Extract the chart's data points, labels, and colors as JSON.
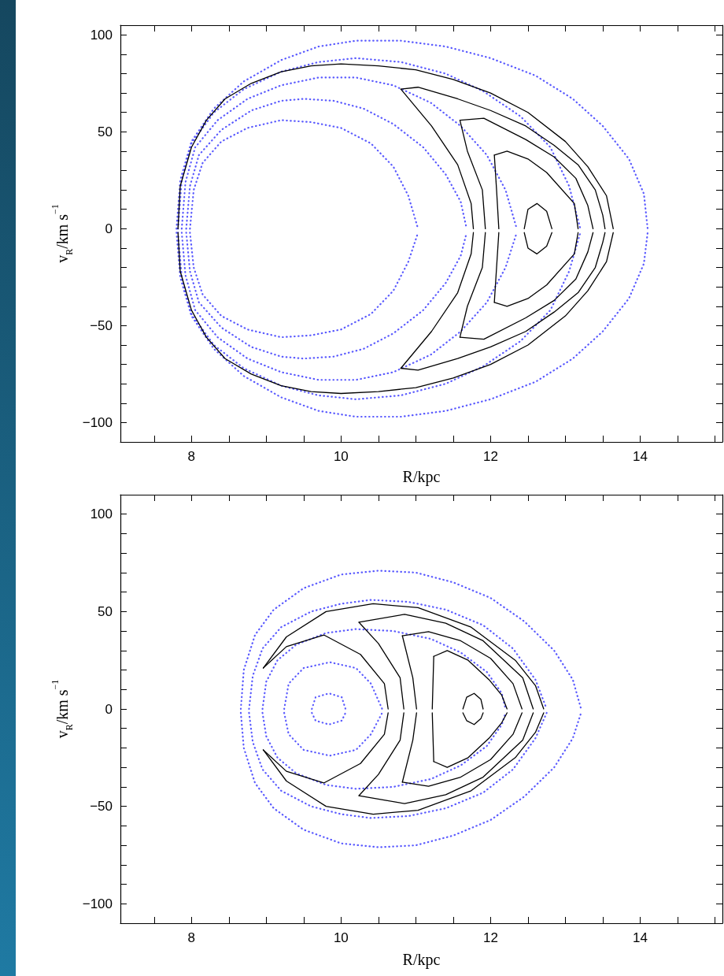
{
  "chart_data": [
    {
      "type": "line",
      "xlabel": "R/kpc",
      "ylabel": "v$_{R}$/km s$^{−1}$",
      "marker": "none",
      "xlim": [
        7.05,
        15.1
      ],
      "ylim": [
        -110,
        105
      ],
      "xticks": [
        {
          "value": 7.5,
          "label": null
        },
        8,
        {
          "value": 8.5,
          "label": null
        },
        {
          "value": 9,
          "label": null
        },
        {
          "value": 9.5,
          "label": null
        },
        10,
        {
          "value": 10.5,
          "label": null
        },
        {
          "value": 11,
          "label": null
        },
        {
          "value": 11.5,
          "label": null
        },
        12,
        {
          "value": 12.5,
          "label": null
        },
        {
          "value": 13,
          "label": null
        },
        {
          "value": 13.5,
          "label": null
        },
        14,
        {
          "value": 14.5,
          "label": null
        },
        {
          "value": 15,
          "label": null
        }
      ],
      "yticks": [
        -100,
        {
          "value": -90,
          "label": null
        },
        {
          "value": -80,
          "label": null
        },
        {
          "value": -70,
          "label": null
        },
        {
          "value": -60,
          "label": null
        },
        -50,
        {
          "value": -40,
          "label": null
        },
        {
          "value": -30,
          "label": null
        },
        {
          "value": -20,
          "label": null
        },
        {
          "value": -10,
          "label": null
        },
        0,
        {
          "value": 10,
          "label": null
        },
        {
          "value": 20,
          "label": null
        },
        {
          "value": 30,
          "label": null
        },
        {
          "value": 40,
          "label": null
        },
        50,
        {
          "value": 60,
          "label": null
        },
        {
          "value": 70,
          "label": null
        },
        {
          "value": 80,
          "label": null
        },
        {
          "value": 90,
          "label": null
        },
        100
      ],
      "series": [
        {
          "color": "#5a5aff",
          "line_style": "dotted",
          "x": [
            7.8,
            7.85,
            8.0,
            8.3,
            8.7,
            9.2,
            9.7,
            10.2,
            10.8,
            11.4,
            12.0,
            12.6,
            13.1,
            13.5,
            13.85,
            14.05,
            14.1
          ],
          "values": [
            0,
            25,
            45,
            62,
            76,
            87,
            94,
            97,
            97,
            94,
            88,
            79,
            67,
            53,
            36,
            18,
            0
          ]
        },
        {
          "color": "#5a5aff",
          "line_style": "dotted",
          "x": [
            7.8,
            7.85,
            8.0,
            8.3,
            8.7,
            9.2,
            9.7,
            10.2,
            10.8,
            11.4,
            12.0,
            12.6,
            13.1,
            13.5,
            13.85,
            14.05,
            14.1
          ],
          "values": [
            -2,
            -25,
            -45,
            -62,
            -76,
            -87,
            -94,
            -97,
            -97,
            -94,
            -88,
            -79,
            -67,
            -53,
            -36,
            -18,
            -2
          ]
        },
        {
          "color": "#5a5aff",
          "line_style": "dotted",
          "x": [
            7.82,
            7.87,
            8.0,
            8.3,
            8.7,
            9.2,
            9.7,
            10.2,
            10.8,
            11.4,
            11.9,
            12.4,
            12.8,
            13.05,
            13.2
          ],
          "values": [
            0,
            25,
            44,
            60,
            72,
            81,
            86,
            88,
            86,
            80,
            71,
            58,
            42,
            22,
            0
          ]
        },
        {
          "color": "#5a5aff",
          "line_style": "dotted",
          "x": [
            7.82,
            7.87,
            8.0,
            8.3,
            8.7,
            9.2,
            9.7,
            10.2,
            10.8,
            11.4,
            11.9,
            12.4,
            12.8,
            13.05,
            13.2
          ],
          "values": [
            -2,
            -25,
            -44,
            -60,
            -72,
            -81,
            -86,
            -88,
            -86,
            -80,
            -71,
            -58,
            -42,
            -22,
            -2
          ]
        },
        {
          "color": "#5a5aff",
          "line_style": "dotted",
          "x": [
            7.87,
            7.92,
            8.05,
            8.35,
            8.75,
            9.2,
            9.7,
            10.2,
            10.7,
            11.2,
            11.6,
            11.95,
            12.2,
            12.35
          ],
          "values": [
            0,
            24,
            42,
            56,
            67,
            74,
            78,
            78,
            74,
            65,
            53,
            38,
            20,
            0
          ]
        },
        {
          "color": "#5a5aff",
          "line_style": "dotted",
          "x": [
            7.87,
            7.92,
            8.05,
            8.35,
            8.75,
            9.2,
            9.7,
            10.2,
            10.7,
            11.2,
            11.6,
            11.95,
            12.2,
            12.35
          ],
          "values": [
            -2,
            -24,
            -42,
            -56,
            -67,
            -74,
            -78,
            -78,
            -74,
            -65,
            -53,
            -38,
            -20,
            -2
          ]
        },
        {
          "color": "#5a5aff",
          "line_style": "dotted",
          "x": [
            7.93,
            7.98,
            8.1,
            8.4,
            8.8,
            9.2,
            9.5,
            9.9,
            10.3,
            10.7,
            11.1,
            11.4,
            11.6,
            11.68
          ],
          "values": [
            0,
            22,
            38,
            51,
            61,
            66,
            67,
            66,
            62,
            54,
            42,
            28,
            14,
            0
          ]
        },
        {
          "color": "#5a5aff",
          "line_style": "dotted",
          "x": [
            7.93,
            7.98,
            8.1,
            8.4,
            8.8,
            9.2,
            9.5,
            9.9,
            10.3,
            10.7,
            11.1,
            11.4,
            11.6,
            11.68
          ],
          "values": [
            -2,
            -22,
            -38,
            -51,
            -61,
            -66,
            -67,
            -66,
            -62,
            -54,
            -42,
            -28,
            -14,
            -2
          ]
        },
        {
          "color": "#5a5aff",
          "line_style": "dotted",
          "x": [
            7.98,
            8.03,
            8.15,
            8.4,
            8.75,
            9.2,
            9.6,
            10.0,
            10.4,
            10.7,
            10.9,
            11.03
          ],
          "values": [
            0,
            20,
            34,
            45,
            52,
            56,
            55,
            52,
            44,
            32,
            17,
            0
          ]
        },
        {
          "color": "#5a5aff",
          "line_style": "dotted",
          "x": [
            7.98,
            8.03,
            8.15,
            8.4,
            8.75,
            9.2,
            9.6,
            10.0,
            10.4,
            10.7,
            10.9,
            11.03
          ],
          "values": [
            -2,
            -20,
            -34,
            -45,
            -52,
            -56,
            -55,
            -52,
            -44,
            -32,
            -17,
            -2
          ]
        },
        {
          "color": "#000000",
          "line_style": "solid",
          "x": [
            7.82,
            7.85,
            8.0,
            8.2,
            8.45,
            8.8,
            9.2,
            9.6,
            10.0,
            10.5,
            11.0,
            11.5,
            12.0,
            12.5,
            13.0,
            13.3,
            13.55,
            13.64
          ],
          "values": [
            0,
            22,
            42,
            56,
            67,
            75,
            81,
            84,
            85,
            84,
            82,
            77,
            70,
            60,
            45,
            32,
            17,
            0
          ]
        },
        {
          "color": "#000000",
          "line_style": "solid",
          "x": [
            7.82,
            7.85,
            8.0,
            8.2,
            8.45,
            8.8,
            9.2,
            9.6,
            10.0,
            10.5,
            11.0,
            11.5,
            12.0,
            12.5,
            13.0,
            13.3,
            13.55,
            13.64
          ],
          "values": [
            -2,
            -22,
            -42,
            -56,
            -67,
            -75,
            -81,
            -84,
            -85,
            -84,
            -82,
            -77,
            -70,
            -60,
            -45,
            -32,
            -17,
            -2
          ]
        },
        {
          "color": "#000000",
          "line_style": "solid",
          "x": [
            10.8,
            11.03,
            11.56,
            12.0,
            12.47,
            12.85,
            13.17,
            13.4,
            13.5,
            13.53
          ],
          "values": [
            72,
            73,
            67,
            61,
            53,
            43,
            33,
            20,
            7,
            0
          ]
        },
        {
          "color": "#000000",
          "line_style": "solid",
          "x": [
            10.8,
            11.03,
            11.56,
            12.0,
            12.47,
            12.85,
            13.17,
            13.4,
            13.5,
            13.53
          ],
          "values": [
            -72,
            -73,
            -67,
            -61,
            -53,
            -43,
            -33,
            -20,
            -7,
            -2
          ]
        },
        {
          "color": "#000000",
          "line_style": "solid",
          "x": [
            10.8,
            11.21,
            11.56,
            11.74,
            11.77
          ],
          "values": [
            72,
            53,
            33,
            13,
            0
          ]
        },
        {
          "color": "#000000",
          "line_style": "solid",
          "x": [
            10.8,
            11.21,
            11.56,
            11.74,
            11.77
          ],
          "values": [
            -72,
            -53,
            -33,
            -13,
            -2
          ]
        },
        {
          "color": "#000000",
          "line_style": "solid",
          "x": [
            11.59,
            11.91,
            12.47,
            12.85,
            13.14,
            13.3,
            13.37
          ],
          "values": [
            56,
            57,
            46,
            37,
            26,
            12,
            0
          ]
        },
        {
          "color": "#000000",
          "line_style": "solid",
          "x": [
            11.59,
            11.91,
            12.47,
            12.85,
            13.14,
            13.3,
            13.37
          ],
          "values": [
            -56,
            -57,
            -46,
            -37,
            -26,
            -12,
            -2
          ]
        },
        {
          "color": "#000000",
          "line_style": "solid",
          "x": [
            11.59,
            11.69,
            11.89,
            11.93
          ],
          "values": [
            56,
            40,
            20,
            0
          ]
        },
        {
          "color": "#000000",
          "line_style": "solid",
          "x": [
            11.59,
            11.69,
            11.89,
            11.93
          ],
          "values": [
            -56,
            -40,
            -20,
            -2
          ]
        },
        {
          "color": "#000000",
          "line_style": "solid",
          "x": [
            12.05,
            12.22,
            12.5,
            12.75,
            13.12,
            13.17
          ],
          "values": [
            38,
            40,
            36,
            29,
            13,
            0
          ]
        },
        {
          "color": "#000000",
          "line_style": "solid",
          "x": [
            12.05,
            12.22,
            12.5,
            12.75,
            13.12,
            13.17
          ],
          "values": [
            -38,
            -40,
            -36,
            -29,
            -13,
            -2
          ]
        },
        {
          "color": "#000000",
          "line_style": "solid",
          "x": [
            12.05,
            12.08,
            12.11
          ],
          "values": [
            38,
            20,
            0
          ]
        },
        {
          "color": "#000000",
          "line_style": "solid",
          "x": [
            12.05,
            12.08,
            12.11
          ],
          "values": [
            -38,
            -20,
            -2
          ]
        },
        {
          "color": "#000000",
          "line_style": "solid",
          "x": [
            12.45,
            12.5,
            12.62,
            12.75,
            12.82
          ],
          "values": [
            0,
            10,
            13,
            9,
            0
          ]
        },
        {
          "color": "#000000",
          "line_style": "solid",
          "x": [
            12.45,
            12.5,
            12.62,
            12.75,
            12.82
          ],
          "values": [
            -2,
            -10,
            -13,
            -9,
            -2
          ]
        }
      ]
    },
    {
      "type": "line",
      "xlabel": "R/kpc",
      "ylabel": "v$_{R}$/km s$^{−1}$",
      "marker": "none",
      "xlim": [
        7.05,
        15.1
      ],
      "ylim": [
        -110,
        110
      ],
      "xticks": [
        {
          "value": 7.5,
          "label": null
        },
        8,
        {
          "value": 8.5,
          "label": null
        },
        {
          "value": 9,
          "label": null
        },
        {
          "value": 9.5,
          "label": null
        },
        10,
        {
          "value": 10.5,
          "label": null
        },
        {
          "value": 11,
          "label": null
        },
        {
          "value": 11.5,
          "label": null
        },
        12,
        {
          "value": 12.5,
          "label": null
        },
        {
          "value": 13,
          "label": null
        },
        {
          "value": 13.5,
          "label": null
        },
        14,
        {
          "value": 14.5,
          "label": null
        },
        {
          "value": 15,
          "label": null
        }
      ],
      "yticks": [
        -100,
        {
          "value": -90,
          "label": null
        },
        {
          "value": -80,
          "label": null
        },
        {
          "value": -70,
          "label": null
        },
        {
          "value": -60,
          "label": null
        },
        -50,
        {
          "value": -40,
          "label": null
        },
        {
          "value": -30,
          "label": null
        },
        {
          "value": -20,
          "label": null
        },
        {
          "value": -10,
          "label": null
        },
        0,
        {
          "value": 10,
          "label": null
        },
        {
          "value": 20,
          "label": null
        },
        {
          "value": 30,
          "label": null
        },
        {
          "value": 40,
          "label": null
        },
        50,
        {
          "value": 60,
          "label": null
        },
        {
          "value": 70,
          "label": null
        },
        {
          "value": 80,
          "label": null
        },
        {
          "value": 90,
          "label": null
        },
        100
      ],
      "series": [
        {
          "color": "#5a5aff",
          "line_style": "dotted",
          "x": [
            8.66,
            8.7,
            8.85,
            9.1,
            9.5,
            10.0,
            10.5,
            11.0,
            11.5,
            12.0,
            12.45,
            12.85,
            13.1,
            13.21
          ],
          "values": [
            0,
            20,
            38,
            51,
            62,
            69,
            71,
            70,
            65,
            57,
            45,
            30,
            15,
            0
          ]
        },
        {
          "color": "#5a5aff",
          "line_style": "dotted",
          "x": [
            8.66,
            8.7,
            8.85,
            9.1,
            9.5,
            10.0,
            10.5,
            11.0,
            11.5,
            12.0,
            12.45,
            12.85,
            13.1,
            13.21
          ],
          "values": [
            -2,
            -20,
            -38,
            -51,
            -62,
            -69,
            -71,
            -70,
            -65,
            -57,
            -45,
            -30,
            -15,
            -2
          ]
        },
        {
          "color": "#5a5aff",
          "line_style": "dotted",
          "x": [
            8.77,
            8.82,
            8.95,
            9.2,
            9.6,
            10.0,
            10.4,
            10.9,
            11.4,
            11.9,
            12.3,
            12.6,
            12.75
          ],
          "values": [
            0,
            17,
            31,
            42,
            50,
            54,
            56,
            55,
            51,
            43,
            31,
            15,
            0
          ]
        },
        {
          "color": "#5a5aff",
          "line_style": "dotted",
          "x": [
            8.77,
            8.82,
            8.95,
            9.2,
            9.6,
            10.0,
            10.4,
            10.9,
            11.4,
            11.9,
            12.3,
            12.6,
            12.75
          ],
          "values": [
            -2,
            -17,
            -31,
            -42,
            -50,
            -54,
            -56,
            -55,
            -51,
            -43,
            -31,
            -15,
            -2
          ]
        },
        {
          "color": "#5a5aff",
          "line_style": "dotted",
          "x": [
            8.95,
            9.0,
            9.15,
            9.4,
            9.8,
            10.2,
            10.7,
            11.2,
            11.6,
            11.95,
            12.15,
            12.2
          ],
          "values": [
            0,
            14,
            25,
            33,
            39,
            41,
            40,
            36,
            29,
            19,
            8,
            0
          ]
        },
        {
          "color": "#5a5aff",
          "line_style": "dotted",
          "x": [
            8.95,
            9.0,
            9.15,
            9.4,
            9.8,
            10.2,
            10.7,
            11.2,
            11.6,
            11.95,
            12.15,
            12.2
          ],
          "values": [
            -2,
            -14,
            -25,
            -33,
            -39,
            -41,
            -40,
            -36,
            -29,
            -19,
            -8,
            -2
          ]
        },
        {
          "color": "#5a5aff",
          "line_style": "dotted",
          "x": [
            9.24,
            9.3,
            9.5,
            9.85,
            10.2,
            10.4,
            10.55
          ],
          "values": [
            0,
            13,
            21,
            24,
            21,
            13,
            0
          ]
        },
        {
          "color": "#5a5aff",
          "line_style": "dotted",
          "x": [
            9.24,
            9.3,
            9.5,
            9.85,
            10.2,
            10.4,
            10.55
          ],
          "values": [
            -2,
            -13,
            -21,
            -24,
            -21,
            -13,
            -2
          ]
        },
        {
          "color": "#5a5aff",
          "line_style": "dotted",
          "x": [
            9.61,
            9.66,
            9.84,
            10.01,
            10.06
          ],
          "values": [
            0,
            6,
            8,
            6,
            0
          ]
        },
        {
          "color": "#5a5aff",
          "line_style": "dotted",
          "x": [
            9.61,
            9.66,
            9.84,
            10.01,
            10.06
          ],
          "values": [
            -2,
            -6,
            -8,
            -6,
            -2
          ]
        },
        {
          "color": "#000000",
          "line_style": "solid",
          "x": [
            8.96,
            9.27,
            9.8,
            10.43,
            11.03,
            11.74,
            12.33,
            12.6,
            12.71
          ],
          "values": [
            21,
            37,
            50,
            54,
            52,
            42,
            25,
            12,
            0
          ]
        },
        {
          "color": "#000000",
          "line_style": "solid",
          "x": [
            8.96,
            9.27,
            9.8,
            10.43,
            11.03,
            11.74,
            12.33,
            12.6,
            12.71
          ],
          "values": [
            -21,
            -37,
            -50,
            -54,
            -52,
            -42,
            -25,
            -12,
            -2
          ]
        },
        {
          "color": "#000000",
          "line_style": "solid",
          "x": [
            8.96,
            9.27,
            9.77,
            10.26,
            10.58,
            10.63
          ],
          "values": [
            21,
            32,
            38,
            28,
            13,
            0
          ]
        },
        {
          "color": "#000000",
          "line_style": "solid",
          "x": [
            8.96,
            9.27,
            9.77,
            10.26,
            10.58,
            10.63
          ],
          "values": [
            -21,
            -32,
            -38,
            -28,
            -13,
            -2
          ]
        },
        {
          "color": "#000000",
          "line_style": "solid",
          "x": [
            10.24,
            10.85,
            11.4,
            11.9,
            12.43,
            12.57
          ],
          "values": [
            44.5,
            48.6,
            44,
            35,
            16,
            0
          ]
        },
        {
          "color": "#000000",
          "line_style": "solid",
          "x": [
            10.24,
            10.85,
            11.4,
            11.9,
            12.43,
            12.57
          ],
          "values": [
            -44.5,
            -48.6,
            -44,
            -35,
            -16,
            -2
          ]
        },
        {
          "color": "#000000",
          "line_style": "solid",
          "x": [
            10.24,
            10.5,
            10.79,
            10.84
          ],
          "values": [
            44.5,
            33.6,
            16,
            0
          ]
        },
        {
          "color": "#000000",
          "line_style": "solid",
          "x": [
            10.24,
            10.5,
            10.79,
            10.84
          ],
          "values": [
            -44.5,
            -33.6,
            -16,
            -2
          ]
        },
        {
          "color": "#000000",
          "line_style": "solid",
          "x": [
            10.82,
            11.17,
            11.6,
            12.0,
            12.3,
            12.42
          ],
          "values": [
            37.6,
            39.7,
            35,
            26,
            13,
            0
          ]
        },
        {
          "color": "#000000",
          "line_style": "solid",
          "x": [
            10.82,
            11.17,
            11.6,
            12.0,
            12.3,
            12.42
          ],
          "values": [
            -37.6,
            -39.7,
            -35,
            -26,
            -13,
            -2
          ]
        },
        {
          "color": "#000000",
          "line_style": "solid",
          "x": [
            10.82,
            10.96,
            11.01
          ],
          "values": [
            37.6,
            16,
            0
          ]
        },
        {
          "color": "#000000",
          "line_style": "solid",
          "x": [
            10.82,
            10.96,
            11.01
          ],
          "values": [
            -37.6,
            -16,
            -2
          ]
        },
        {
          "color": "#000000",
          "line_style": "solid",
          "x": [
            11.24,
            11.42,
            11.7,
            11.98,
            12.15,
            12.22
          ],
          "values": [
            27,
            30,
            25,
            15,
            7,
            0
          ]
        },
        {
          "color": "#000000",
          "line_style": "solid",
          "x": [
            11.24,
            11.42,
            11.7,
            11.98,
            12.15,
            12.22
          ],
          "values": [
            -27,
            -30,
            -25,
            -15,
            -7,
            -2
          ]
        },
        {
          "color": "#000000",
          "line_style": "solid",
          "x": [
            11.24,
            11.22
          ],
          "values": [
            27,
            0
          ]
        },
        {
          "color": "#000000",
          "line_style": "solid",
          "x": [
            11.24,
            11.22
          ],
          "values": [
            -27,
            -2
          ]
        },
        {
          "color": "#000000",
          "line_style": "solid",
          "x": [
            11.63,
            11.68,
            11.78,
            11.87,
            11.9
          ],
          "values": [
            0,
            6,
            8,
            5,
            0
          ]
        },
        {
          "color": "#000000",
          "line_style": "solid",
          "x": [
            11.63,
            11.68,
            11.78,
            11.87,
            11.9
          ],
          "values": [
            -2,
            -6,
            -8,
            -5,
            -2
          ]
        }
      ]
    }
  ]
}
